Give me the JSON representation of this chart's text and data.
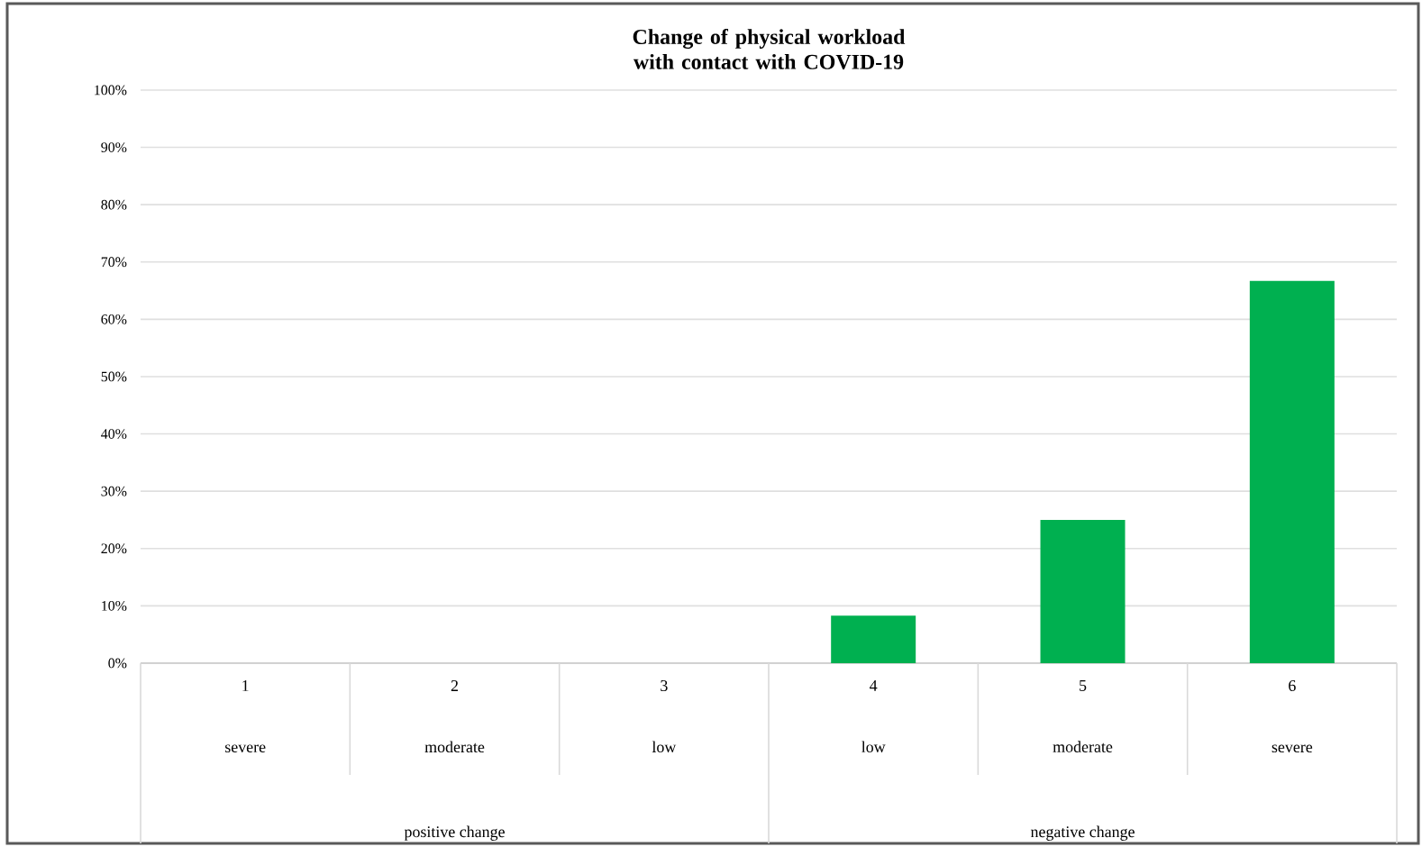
{
  "chart_data": {
    "type": "bar",
    "title": "Change of physical workload with contact with COVID-19",
    "categories": [
      "1 severe",
      "2 moderate",
      "3 low",
      "4 low",
      "5 moderate",
      "6 severe"
    ],
    "values": [
      0,
      0,
      0,
      8.3,
      25,
      66.7
    ],
    "color": "#00b050",
    "ylim": [
      0,
      100
    ],
    "yticks": [
      {
        "value": 0,
        "label": "0%"
      },
      {
        "value": 10,
        "label": "10%"
      },
      {
        "value": 20,
        "label": "20%"
      },
      {
        "value": 30,
        "label": "30%"
      },
      {
        "value": 40,
        "label": "40%"
      },
      {
        "value": 50,
        "label": "50%"
      },
      {
        "value": 60,
        "label": "60%"
      },
      {
        "value": 70,
        "label": "70%"
      },
      {
        "value": 80,
        "label": "80%"
      },
      {
        "value": 90,
        "label": "90%"
      },
      {
        "value": 100,
        "label": "100%"
      }
    ],
    "grid": "y",
    "annotations": [
      "positive change",
      "negative change"
    ]
  }
}
